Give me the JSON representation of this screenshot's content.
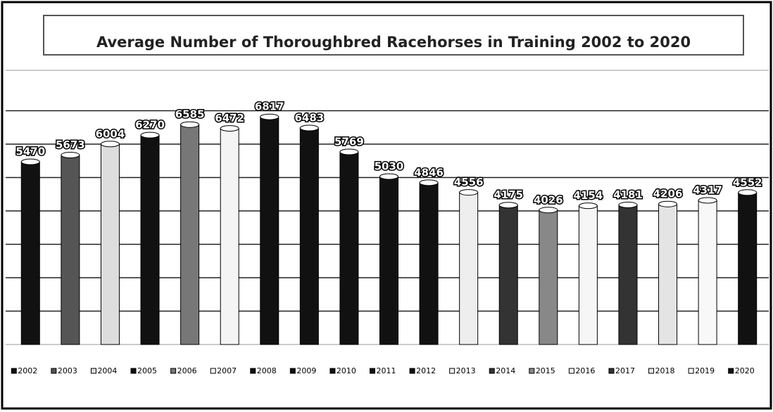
{
  "chart_data": {
    "type": "bar",
    "title": "Average Number of Thoroughbred Racehorses in Training 2002 to 2020",
    "categories": [
      "2002",
      "2003",
      "2004",
      "2005",
      "2006",
      "2007",
      "2008",
      "2009",
      "2010",
      "2011",
      "2012",
      "2013",
      "2014",
      "2015",
      "2016",
      "2017",
      "2018",
      "2019",
      "2020"
    ],
    "values": [
      5470,
      5673,
      6004,
      6270,
      6585,
      6472,
      6817,
      6483,
      5769,
      5030,
      4846,
      4556,
      4175,
      4026,
      4154,
      4181,
      4206,
      4317,
      4552
    ],
    "colors": [
      "#111111",
      "#555555",
      "#dddddd",
      "#111111",
      "#777777",
      "#f4f4f4",
      "#111111",
      "#111111",
      "#111111",
      "#111111",
      "#111111",
      "#eeeeee",
      "#333333",
      "#888888",
      "#f6f6f6",
      "#333333",
      "#e4e4e4",
      "#f8f8f8",
      "#111111"
    ],
    "ylim": [
      0,
      8000
    ],
    "yticks": [
      1000,
      2000,
      3000,
      4000,
      5000,
      6000,
      7000
    ],
    "grid": true
  }
}
